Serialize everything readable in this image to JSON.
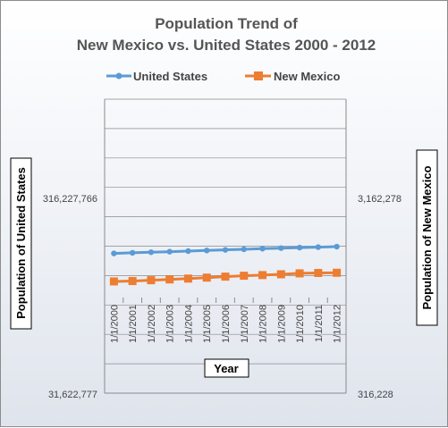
{
  "chart_data": {
    "type": "line",
    "title": [
      "Population Trend of",
      "New Mexico vs. United States 2000 - 2012"
    ],
    "xlabel": "Year",
    "ylabel_left": "Population of United States",
    "ylabel_right": "Population of New Mexico",
    "y_scale": "log",
    "categories": [
      "1/1/2000",
      "1/1/2001",
      "1/1/2002",
      "1/1/2003",
      "1/1/2004",
      "1/1/2005",
      "1/1/2006",
      "1/1/2007",
      "1/1/2008",
      "1/1/2009",
      "1/1/2010",
      "1/1/2011",
      "1/1/2012"
    ],
    "left_axis": {
      "ticks": [
        "316,227,766",
        "31,622,777"
      ],
      "range": [
        31622777,
        3162277660
      ]
    },
    "right_axis": {
      "ticks": [
        "3,162,278",
        "316,228"
      ],
      "range": [
        316228,
        31622777
      ]
    },
    "legend_position": "top",
    "grid": true,
    "series": [
      {
        "name": "United States",
        "axis": "left",
        "color": "#5b9bd5",
        "marker": "circle",
        "values": [
          282200000,
          285000000,
          287600000,
          290100000,
          292800000,
          295500000,
          298400000,
          301200000,
          304100000,
          306800000,
          309300000,
          311600000,
          313900000
        ]
      },
      {
        "name": "New Mexico",
        "axis": "right",
        "color": "#ed7d31",
        "marker": "square",
        "values": [
          1820000,
          1831000,
          1855000,
          1878000,
          1903000,
          1932000,
          1962000,
          1990000,
          2010000,
          2036000,
          2065000,
          2078000,
          2085000
        ]
      }
    ]
  }
}
